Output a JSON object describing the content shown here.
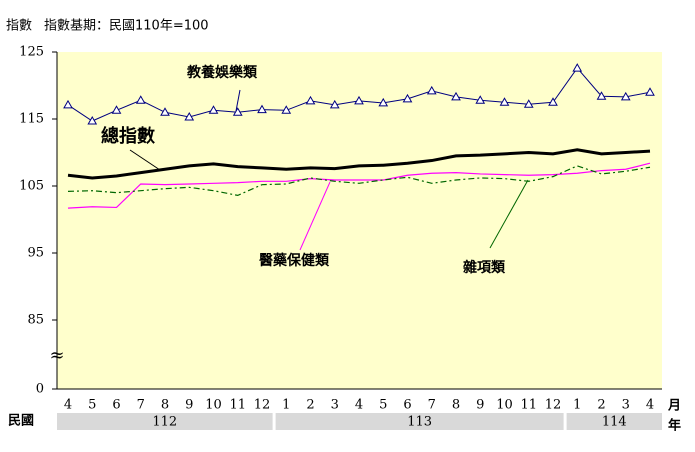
{
  "chart_data": {
    "type": "line",
    "ylabel": "指數",
    "subtitle": "指數基期：民國110年=100",
    "xlabel_left": "民國",
    "xlabel_month": "月",
    "xlabel_year": "年",
    "categories": [
      "4",
      "5",
      "6",
      "7",
      "8",
      "9",
      "10",
      "11",
      "12",
      "1",
      "2",
      "3",
      "4",
      "5",
      "6",
      "7",
      "8",
      "9",
      "10",
      "11",
      "12",
      "1",
      "2",
      "3",
      "4"
    ],
    "years": [
      "112",
      "113",
      "114"
    ],
    "ylim": [
      0,
      125
    ],
    "ybreak": [
      0,
      85
    ],
    "yticks": [
      0,
      85,
      95,
      105,
      115,
      125
    ],
    "grid": false,
    "series": [
      {
        "name": "教養娛樂類",
        "color": "#000080",
        "marker": "triangle",
        "line_width": 1,
        "values": [
          117.1,
          114.7,
          116.3,
          117.8,
          116.0,
          115.3,
          116.3,
          116.0,
          116.4,
          116.3,
          117.7,
          117.1,
          117.7,
          117.4,
          118.0,
          119.2,
          118.3,
          117.8,
          117.5,
          117.2,
          117.5,
          122.6,
          118.4,
          118.3,
          119.0
        ]
      },
      {
        "name": "總指數",
        "color": "#000000",
        "line_width": 3,
        "values": [
          106.6,
          106.2,
          106.5,
          107.0,
          107.5,
          108.0,
          108.3,
          107.9,
          107.7,
          107.5,
          107.7,
          107.6,
          108.0,
          108.1,
          108.4,
          108.8,
          109.5,
          109.6,
          109.8,
          110.0,
          109.8,
          110.4,
          109.8,
          110.0,
          110.2
        ]
      },
      {
        "name": "醫藥保健類",
        "color": "#ff00ff",
        "line_width": 1.2,
        "values": [
          101.7,
          101.9,
          101.8,
          105.3,
          105.2,
          105.3,
          105.4,
          105.5,
          105.7,
          105.7,
          106.1,
          105.9,
          105.9,
          105.9,
          106.6,
          106.9,
          107.0,
          106.8,
          106.7,
          106.6,
          106.7,
          106.9,
          107.3,
          107.5,
          108.4
        ]
      },
      {
        "name": "雜項類",
        "color": "#006600",
        "dash": "dashdot",
        "line_width": 1.2,
        "values": [
          104.2,
          104.3,
          104.0,
          104.3,
          104.6,
          104.8,
          104.3,
          103.6,
          105.2,
          105.3,
          106.2,
          105.7,
          105.4,
          105.9,
          106.3,
          105.4,
          105.9,
          106.2,
          106.1,
          105.7,
          106.4,
          108.0,
          106.8,
          107.2,
          107.8
        ]
      }
    ]
  }
}
